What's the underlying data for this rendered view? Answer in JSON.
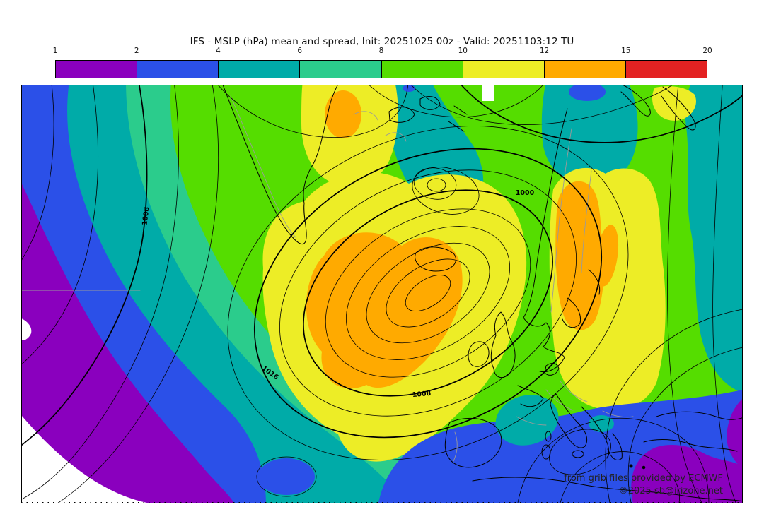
{
  "title": "IFS - MSLP (hPa) mean and spread, Init: 20251025 00z - Valid: 20251103:12 TU",
  "colorbar": {
    "ticks": [
      "1",
      "2",
      "4",
      "6",
      "8",
      "10",
      "12",
      "15",
      "20"
    ],
    "segment_colors": [
      "#8A00BE",
      "#2B50E8",
      "#00ABA8",
      "#2BCC8C",
      "#55DD00",
      "#EDED26",
      "#FFAA00",
      "#E32222"
    ]
  },
  "map": {
    "contour_labels": [
      {
        "value": "1008"
      },
      {
        "value": "1016"
      },
      {
        "value": "1008"
      },
      {
        "value": "1000"
      }
    ],
    "attribution": {
      "line1": "from grib files provided by ECMWF",
      "line2": "©2025 sb@irizone.net"
    },
    "spread_band_colors": {
      "1_2": "#8A00BE",
      "2_4": "#2B50E8",
      "4_6": "#00ABA8",
      "6_8": "#2BCC8C",
      "8_10": "#55DD00",
      "10_12": "#EDED26",
      "12_15": "#FFAA00",
      "15_20": "#E32222",
      "below_1": "#FFFFFF"
    }
  },
  "chart_data": {
    "type": "heatmap",
    "title": "IFS - MSLP (hPa) mean and spread, Init: 20251025 00z - Valid: 20251103:12 TU",
    "variable": "MSLP ensemble mean (isobars, hPa) and spread (shading, hPa)",
    "model": "IFS",
    "init": "20251025 00z",
    "valid": "20251103:12 TU",
    "colorbar_ticks": [
      1,
      2,
      4,
      6,
      8,
      10,
      12,
      15,
      20
    ],
    "colorbar_colors": [
      "#8A00BE",
      "#2B50E8",
      "#00ABA8",
      "#2BCC8C",
      "#55DD00",
      "#EDED26",
      "#FFAA00",
      "#E32222"
    ],
    "isobar_labels_hpa": [
      1008,
      1016,
      1008,
      1000
    ],
    "legend_position": "top",
    "notes": "High spread (orange, 12-15 hPa) centered over North Atlantic south of Iceland and over Scandinavia; low spread (purple/white, <2 hPa) over southwest Atlantic and eastern Mediterranean"
  }
}
